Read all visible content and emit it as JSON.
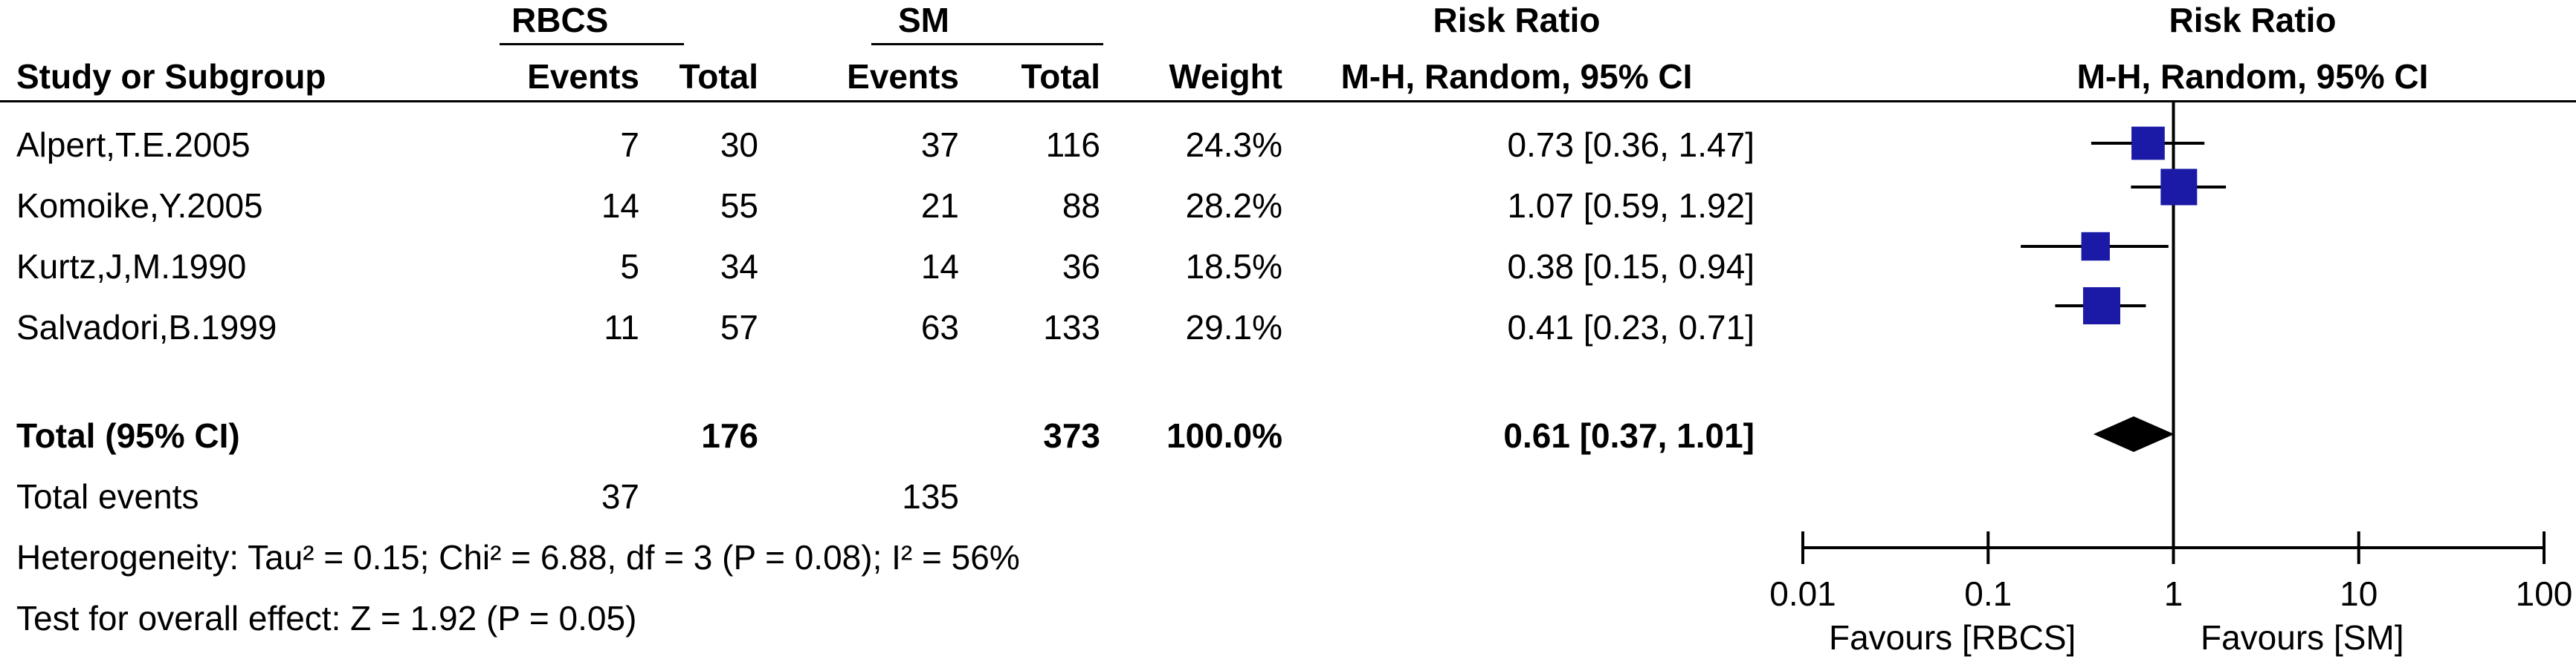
{
  "chart_data": {
    "type": "forest",
    "group_headers": {
      "experimental": "RBCS",
      "control": "SM",
      "effect_table": "Risk Ratio",
      "effect_plot": "Risk Ratio"
    },
    "columns": {
      "study": "Study or Subgroup",
      "exp_events": "Events",
      "exp_total": "Total",
      "ctrl_events": "Events",
      "ctrl_total": "Total",
      "weight": "Weight",
      "method": "M-H, Random, 95% CI",
      "plot_method": "M-H, Random, 95% CI"
    },
    "studies": [
      {
        "name": "Alpert,T.E.2005",
        "exp_events": "7",
        "exp_total": "30",
        "ctrl_events": "37",
        "ctrl_total": "116",
        "weight": "24.3%",
        "ci_text": "0.73 [0.36, 1.47]",
        "rr": 0.73,
        "lo": 0.36,
        "hi": 1.47,
        "w": 24.3
      },
      {
        "name": "Komoike,Y.2005",
        "exp_events": "14",
        "exp_total": "55",
        "ctrl_events": "21",
        "ctrl_total": "88",
        "weight": "28.2%",
        "ci_text": "1.07 [0.59, 1.92]",
        "rr": 1.07,
        "lo": 0.59,
        "hi": 1.92,
        "w": 28.2
      },
      {
        "name": "Kurtz,J,M.1990",
        "exp_events": "5",
        "exp_total": "34",
        "ctrl_events": "14",
        "ctrl_total": "36",
        "weight": "18.5%",
        "ci_text": "0.38 [0.15, 0.94]",
        "rr": 0.38,
        "lo": 0.15,
        "hi": 0.94,
        "w": 18.5
      },
      {
        "name": "Salvadori,B.1999",
        "exp_events": "11",
        "exp_total": "57",
        "ctrl_events": "63",
        "ctrl_total": "133",
        "weight": "29.1%",
        "ci_text": "0.41 [0.23, 0.71]",
        "rr": 0.41,
        "lo": 0.23,
        "hi": 0.71,
        "w": 29.1
      }
    ],
    "total": {
      "label": "Total (95% CI)",
      "exp_total": "176",
      "ctrl_total": "373",
      "weight": "100.0%",
      "ci_text": "0.61 [0.37, 1.01]",
      "rr": 0.61,
      "lo": 0.37,
      "hi": 1.01
    },
    "total_events": {
      "label": "Total events",
      "exp": "37",
      "ctrl": "135"
    },
    "heterogeneity": "Heterogeneity: Tau² = 0.15; Chi² = 6.88, df = 3 (P = 0.08); I² = 56%",
    "overall_effect": "Test for overall effect: Z = 1.92 (P = 0.05)",
    "x_axis": {
      "scale": "log",
      "ticks": [
        0.01,
        0.1,
        1,
        10,
        100
      ],
      "tick_labels": [
        "0.01",
        "0.1",
        "1",
        "10",
        "100"
      ],
      "xlim": [
        0.01,
        100
      ]
    },
    "favours_left": "Favours [RBCS]",
    "favours_right": "Favours [SM]",
    "colors": {
      "marker": "#1a1aa6",
      "diamond": "#000000",
      "line": "#000000"
    }
  }
}
